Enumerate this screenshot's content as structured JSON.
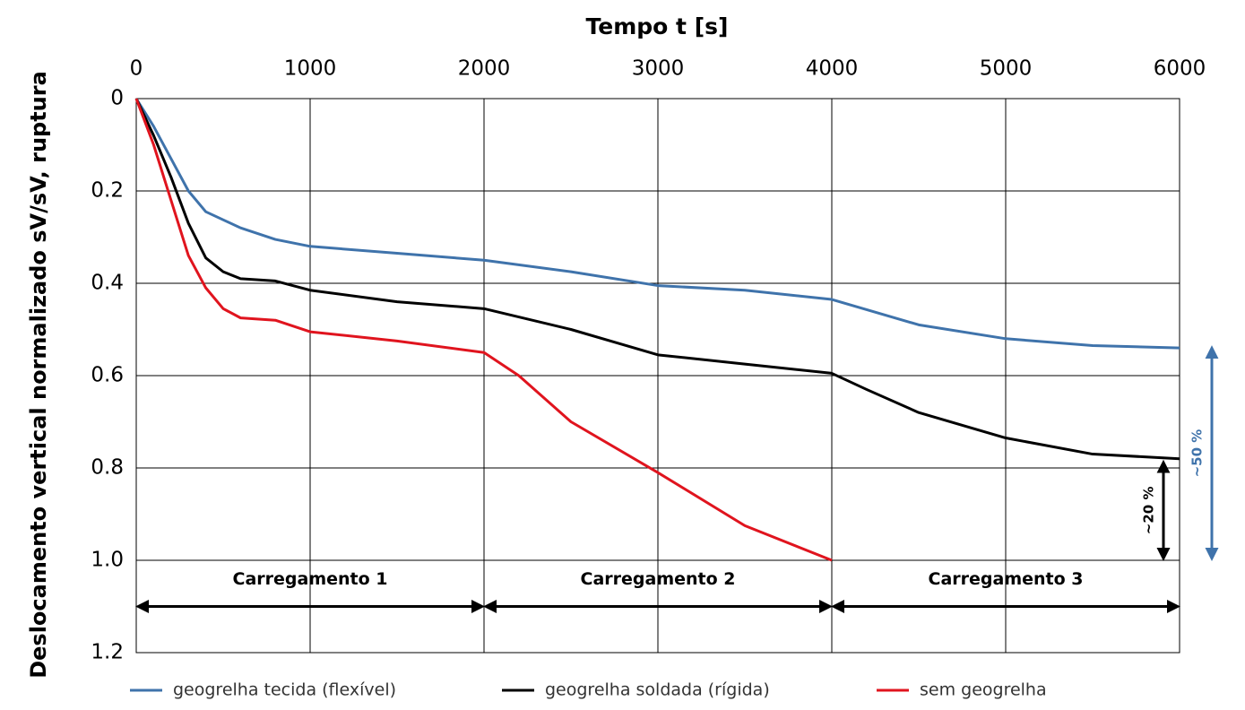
{
  "chart_data": {
    "type": "line",
    "title": "Tempo t [s]",
    "y_label": "Deslocamento vertical normalizado sV/sV, ruptura",
    "x_axis_position": "top",
    "y_inverted": true,
    "grid": true,
    "xlim": [
      0,
      6000
    ],
    "xticks": [
      0,
      1000,
      2000,
      3000,
      4000,
      5000,
      6000
    ],
    "ylim": [
      0,
      1.2
    ],
    "yticks": [
      0,
      0.2,
      0.4,
      0.6,
      0.8,
      {
        "value": 1,
        "label": "1.0"
      },
      1.2
    ],
    "series": [
      {
        "name": "geogrelha tecida (flexível)",
        "color": "#3f73ab",
        "x": [
          0,
          100,
          200,
          300,
          400,
          600,
          800,
          1000,
          1500,
          2000,
          2500,
          3000,
          3500,
          4000,
          4500,
          5000,
          5500,
          6000
        ],
        "values": [
          0,
          0.06,
          0.13,
          0.2,
          0.245,
          0.28,
          0.305,
          0.32,
          0.335,
          0.35,
          0.375,
          0.405,
          0.415,
          0.435,
          0.49,
          0.52,
          0.535,
          0.54
        ]
      },
      {
        "name": "geogrelha soldada (rígida)",
        "color": "#000000",
        "x": [
          0,
          100,
          200,
          300,
          400,
          500,
          600,
          800,
          1000,
          1500,
          2000,
          2500,
          3000,
          3500,
          4000,
          4200,
          4500,
          5000,
          5500,
          6000
        ],
        "values": [
          0,
          0.08,
          0.17,
          0.27,
          0.345,
          0.375,
          0.39,
          0.395,
          0.415,
          0.44,
          0.455,
          0.5,
          0.555,
          0.575,
          0.595,
          0.63,
          0.68,
          0.735,
          0.77,
          0.78
        ]
      },
      {
        "name": "sem geogrelha",
        "color": "#e0141e",
        "x": [
          0,
          100,
          200,
          300,
          400,
          500,
          600,
          800,
          1000,
          1500,
          2000,
          2200,
          2500,
          3000,
          3500,
          4000
        ],
        "values": [
          0,
          0.1,
          0.22,
          0.34,
          0.41,
          0.455,
          0.475,
          0.48,
          0.505,
          0.525,
          0.55,
          0.6,
          0.7,
          0.81,
          0.925,
          1.0
        ]
      }
    ],
    "phases": [
      {
        "label": "Carregamento 1",
        "start": 0,
        "end": 2000,
        "level": 1.1
      },
      {
        "label": "Carregamento 2",
        "start": 2000,
        "end": 4000,
        "level": 1.1
      },
      {
        "label": "Carregamento 3",
        "start": 4000,
        "end": 6000,
        "level": 1.1
      }
    ],
    "annotations": [
      {
        "label": "~20 %",
        "from": 0.78,
        "to": 1.0,
        "color": "#000000"
      },
      {
        "label": "~50 %",
        "from": 0.54,
        "to": 1.0,
        "color": "#3f73ab"
      }
    ]
  }
}
